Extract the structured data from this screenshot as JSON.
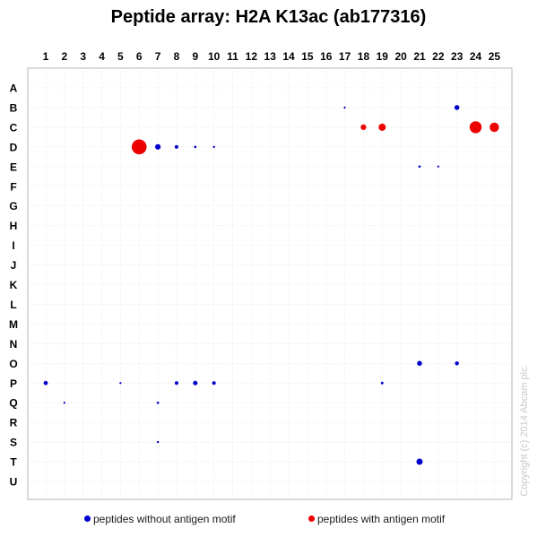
{
  "chart_data": {
    "type": "scatter",
    "title": "Peptide array: H2A K13ac (ab177316)",
    "columns": [
      "1",
      "2",
      "3",
      "4",
      "5",
      "6",
      "7",
      "8",
      "9",
      "10",
      "11",
      "12",
      "13",
      "14",
      "15",
      "16",
      "17",
      "18",
      "19",
      "20",
      "21",
      "22",
      "23",
      "24",
      "25"
    ],
    "rows": [
      "A",
      "B",
      "C",
      "D",
      "E",
      "F",
      "G",
      "H",
      "I",
      "J",
      "K",
      "L",
      "M",
      "N",
      "O",
      "P",
      "Q",
      "R",
      "S",
      "T",
      "U"
    ],
    "grid": true,
    "legend_position": "bottom",
    "series": [
      {
        "name": "peptides without antigen motif",
        "color": "#0000cc",
        "points": [
          {
            "col": 23,
            "row": "B",
            "value": 0.25
          },
          {
            "col": 17,
            "row": "B",
            "value": 0.03
          },
          {
            "col": 7,
            "row": "D",
            "value": 0.3
          },
          {
            "col": 8,
            "row": "D",
            "value": 0.15
          },
          {
            "col": 9,
            "row": "D",
            "value": 0.06
          },
          {
            "col": 10,
            "row": "D",
            "value": 0.04
          },
          {
            "col": 21,
            "row": "E",
            "value": 0.06
          },
          {
            "col": 22,
            "row": "E",
            "value": 0.03
          },
          {
            "col": 21,
            "row": "O",
            "value": 0.25
          },
          {
            "col": 23,
            "row": "O",
            "value": 0.18
          },
          {
            "col": 1,
            "row": "P",
            "value": 0.2
          },
          {
            "col": 5,
            "row": "P",
            "value": 0.03
          },
          {
            "col": 8,
            "row": "P",
            "value": 0.15
          },
          {
            "col": 9,
            "row": "P",
            "value": 0.22
          },
          {
            "col": 10,
            "row": "P",
            "value": 0.15
          },
          {
            "col": 19,
            "row": "P",
            "value": 0.08
          },
          {
            "col": 2,
            "row": "Q",
            "value": 0.03
          },
          {
            "col": 7,
            "row": "Q",
            "value": 0.06
          },
          {
            "col": 7,
            "row": "S",
            "value": 0.04
          },
          {
            "col": 21,
            "row": "T",
            "value": 0.35
          }
        ]
      },
      {
        "name": "peptides with antigen motif",
        "color": "#ee0000",
        "points": [
          {
            "col": 6,
            "row": "D",
            "value": 1.0
          },
          {
            "col": 18,
            "row": "C",
            "value": 0.3
          },
          {
            "col": 19,
            "row": "C",
            "value": 0.42
          },
          {
            "col": 24,
            "row": "C",
            "value": 0.78
          },
          {
            "col": 25,
            "row": "C",
            "value": 0.58
          }
        ]
      }
    ]
  },
  "copyright": "Copyright (c) 2014 Abcam plc."
}
